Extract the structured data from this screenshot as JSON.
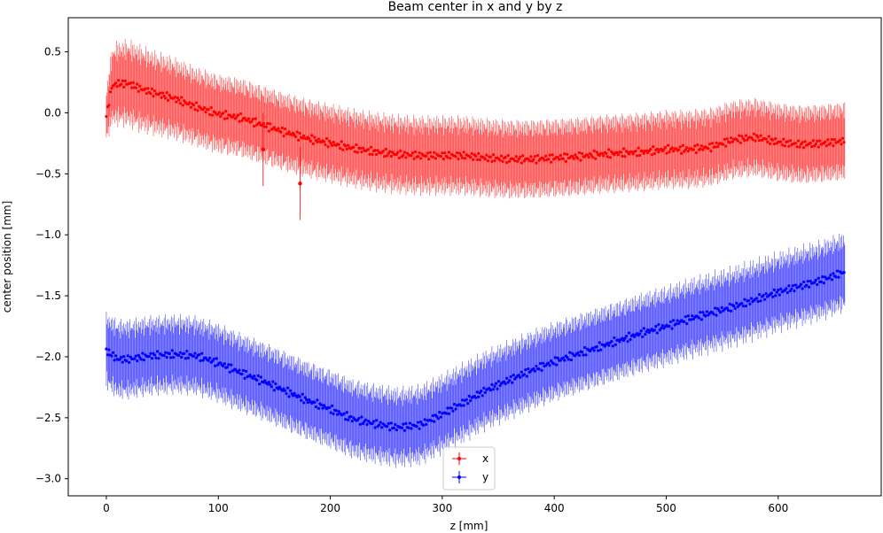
{
  "chart_data": {
    "type": "scatter",
    "title": "Beam center in x and y by z",
    "xlabel": "z [mm]",
    "ylabel": "center position [mm]",
    "xlim": [
      -34,
      692
    ],
    "ylim": [
      -3.14,
      0.78
    ],
    "xticks": [
      0,
      100,
      200,
      300,
      400,
      500,
      600
    ],
    "yticks": [
      0.5,
      0.0,
      -0.5,
      -1.0,
      -1.5,
      -2.0,
      -2.5,
      -3.0
    ],
    "xtick_labels": [
      "0",
      "100",
      "200",
      "300",
      "400",
      "500",
      "600"
    ],
    "ytick_labels": [
      "0.5",
      "0.0",
      "−0.5",
      "−1.0",
      "−1.5",
      "−2.0",
      "−2.5",
      "−3.0"
    ],
    "grid": false,
    "legend_position": "bottom-center",
    "error_style": "vertical error bars on every point",
    "series": [
      {
        "name": "x",
        "color": "#ff0000",
        "x": [
          0,
          5,
          10,
          20,
          30,
          40,
          60,
          80,
          100,
          120,
          140,
          160,
          180,
          200,
          220,
          240,
          260,
          280,
          300,
          320,
          340,
          360,
          380,
          400,
          420,
          440,
          460,
          480,
          500,
          520,
          540,
          560,
          580,
          600,
          620,
          640,
          660
        ],
        "y": [
          -0.03,
          0.22,
          0.24,
          0.24,
          0.2,
          0.17,
          0.12,
          0.05,
          -0.01,
          -0.04,
          -0.1,
          -0.16,
          -0.21,
          -0.25,
          -0.29,
          -0.32,
          -0.34,
          -0.35,
          -0.35,
          -0.35,
          -0.37,
          -0.38,
          -0.38,
          -0.37,
          -0.36,
          -0.34,
          -0.33,
          -0.32,
          -0.3,
          -0.3,
          -0.28,
          -0.22,
          -0.2,
          -0.24,
          -0.26,
          -0.25,
          -0.23
        ],
        "err_half": [
          0.2,
          0.3,
          0.32,
          0.33,
          0.33,
          0.32,
          0.31,
          0.3,
          0.3,
          0.3,
          0.3,
          0.3,
          0.3,
          0.3,
          0.3,
          0.3,
          0.3,
          0.3,
          0.3,
          0.3,
          0.3,
          0.3,
          0.3,
          0.3,
          0.3,
          0.3,
          0.3,
          0.3,
          0.3,
          0.3,
          0.3,
          0.3,
          0.3,
          0.3,
          0.3,
          0.3,
          0.3
        ],
        "outliers": [
          [
            140,
            -0.3
          ],
          [
            173,
            -0.58
          ]
        ]
      },
      {
        "name": "y",
        "color": "#0000ff",
        "x": [
          0,
          10,
          20,
          40,
          60,
          80,
          100,
          120,
          140,
          160,
          180,
          200,
          220,
          240,
          260,
          280,
          300,
          320,
          340,
          360,
          380,
          400,
          420,
          440,
          460,
          480,
          500,
          520,
          540,
          560,
          580,
          600,
          620,
          640,
          660
        ],
        "y": [
          -1.95,
          -2.02,
          -2.02,
          -1.99,
          -1.98,
          -1.99,
          -2.05,
          -2.13,
          -2.2,
          -2.28,
          -2.36,
          -2.43,
          -2.51,
          -2.55,
          -2.58,
          -2.56,
          -2.47,
          -2.37,
          -2.27,
          -2.19,
          -2.11,
          -2.04,
          -1.98,
          -1.92,
          -1.86,
          -1.8,
          -1.75,
          -1.69,
          -1.64,
          -1.59,
          -1.53,
          -1.47,
          -1.42,
          -1.37,
          -1.3
        ],
        "err_half": [
          0.29,
          0.3,
          0.3,
          0.3,
          0.3,
          0.3,
          0.3,
          0.3,
          0.3,
          0.3,
          0.3,
          0.3,
          0.3,
          0.3,
          0.3,
          0.3,
          0.3,
          0.3,
          0.3,
          0.3,
          0.3,
          0.3,
          0.3,
          0.3,
          0.3,
          0.3,
          0.3,
          0.3,
          0.3,
          0.3,
          0.3,
          0.3,
          0.3,
          0.3,
          0.3
        ]
      }
    ]
  }
}
